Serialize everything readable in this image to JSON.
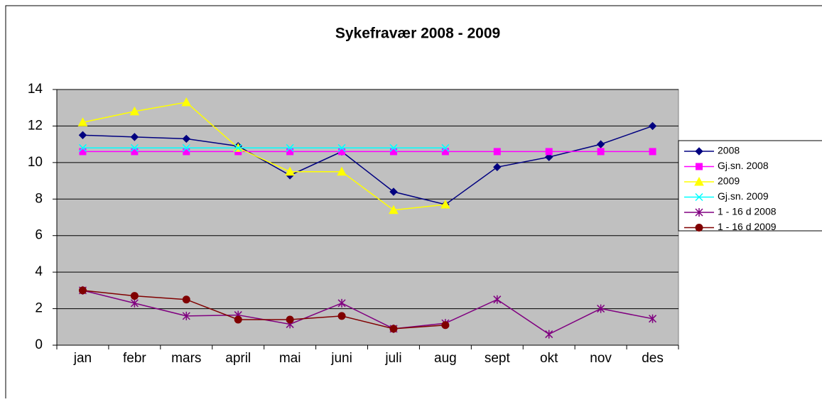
{
  "chart_data": {
    "type": "line",
    "title": "Sykefravær 2008 - 2009",
    "categories": [
      "jan",
      "febr",
      "mars",
      "april",
      "mai",
      "juni",
      "juli",
      "aug",
      "sept",
      "okt",
      "nov",
      "des"
    ],
    "ylim": [
      0,
      14
    ],
    "yticks": [
      0,
      2,
      4,
      6,
      8,
      10,
      12,
      14
    ],
    "grid": true,
    "legend": "right",
    "series": [
      {
        "name": "2008",
        "color": "#000080",
        "marker": "diamond",
        "values": [
          11.5,
          11.4,
          11.3,
          10.9,
          9.3,
          10.6,
          8.4,
          7.7,
          9.75,
          10.3,
          11.0,
          12.0
        ]
      },
      {
        "name": "Gj.sn. 2008",
        "color": "#ff00ff",
        "marker": "square",
        "values": [
          10.6,
          10.6,
          10.6,
          10.6,
          10.6,
          10.6,
          10.6,
          10.6,
          10.6,
          10.6,
          10.6,
          10.6
        ]
      },
      {
        "name": "2009",
        "color": "#ffff00",
        "marker": "triangle",
        "values": [
          12.2,
          12.8,
          13.3,
          10.8,
          9.5,
          9.5,
          7.4,
          7.7,
          null,
          null,
          null,
          null
        ]
      },
      {
        "name": "Gj.sn. 2009",
        "color": "#00ffff",
        "marker": "x",
        "values": [
          10.8,
          10.8,
          10.8,
          10.8,
          10.8,
          10.8,
          10.8,
          10.8,
          null,
          null,
          null,
          null
        ]
      },
      {
        "name": "1 - 16 d 2008",
        "color": "#800080",
        "marker": "star",
        "values": [
          3.0,
          2.3,
          1.6,
          1.65,
          1.15,
          2.3,
          0.9,
          1.2,
          2.5,
          0.6,
          2.0,
          1.45
        ]
      },
      {
        "name": "1 - 16 d 2009",
        "color": "#800000",
        "marker": "circle",
        "values": [
          3.0,
          2.7,
          2.5,
          1.4,
          1.4,
          1.6,
          0.9,
          1.1,
          null,
          null,
          null,
          null
        ]
      }
    ]
  }
}
